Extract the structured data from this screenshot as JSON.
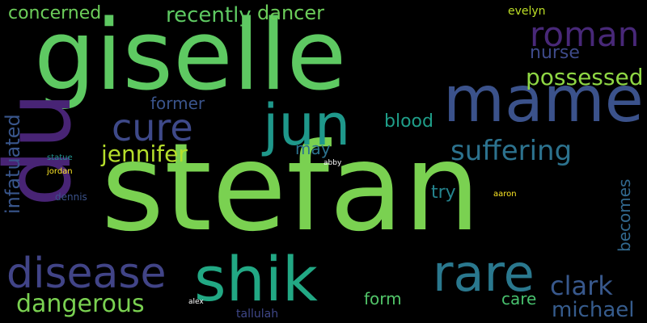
{
  "words": [
    {
      "text": "stefan",
      "color": "#7ad151"
    },
    {
      "text": "giselle",
      "color": "#5ec962"
    },
    {
      "text": "mame",
      "color": "#3b528b"
    },
    {
      "text": "du",
      "color": "#482475"
    },
    {
      "text": "shik",
      "color": "#22a884"
    },
    {
      "text": "jun",
      "color": "#1f988b"
    },
    {
      "text": "rare",
      "color": "#2a788e"
    },
    {
      "text": "disease",
      "color": "#414487"
    },
    {
      "text": "roman",
      "color": "#482878"
    },
    {
      "text": "cure",
      "color": "#3e4989"
    },
    {
      "text": "suffering",
      "color": "#2c728e"
    },
    {
      "text": "possessed",
      "color": "#8fd744"
    },
    {
      "text": "clark",
      "color": "#38588c"
    },
    {
      "text": "michael",
      "color": "#365c8d"
    },
    {
      "text": "dangerous",
      "color": "#7ad151"
    },
    {
      "text": "jennifer",
      "color": "#b5de2b"
    },
    {
      "text": "concerned",
      "color": "#6ccd5a"
    },
    {
      "text": "recently",
      "color": "#5ec962"
    },
    {
      "text": "dancer",
      "color": "#6ccd5a"
    },
    {
      "text": "infatuated",
      "color": "#39568c"
    },
    {
      "text": "nurse",
      "color": "#3e4a89"
    },
    {
      "text": "blood",
      "color": "#1f9e89"
    },
    {
      "text": "former",
      "color": "#3a548c"
    },
    {
      "text": "form",
      "color": "#52c569"
    },
    {
      "text": "care",
      "color": "#48c16e"
    },
    {
      "text": "becomes",
      "color": "#31688e"
    },
    {
      "text": "try",
      "color": "#25848e"
    },
    {
      "text": "may",
      "color": "#2c728e"
    },
    {
      "text": "tallulah",
      "color": "#3f4788"
    },
    {
      "text": "evelyn",
      "color": "#bddf26"
    },
    {
      "text": "dennis",
      "color": "#3b528b"
    },
    {
      "text": "statue",
      "color": "#21918c"
    },
    {
      "text": "jordan",
      "color": "#fde725"
    },
    {
      "text": "aaron",
      "color": "#fde725"
    },
    {
      "text": "alex",
      "color": "#ffffff"
    },
    {
      "text": "abby",
      "color": "#ffffff"
    }
  ]
}
